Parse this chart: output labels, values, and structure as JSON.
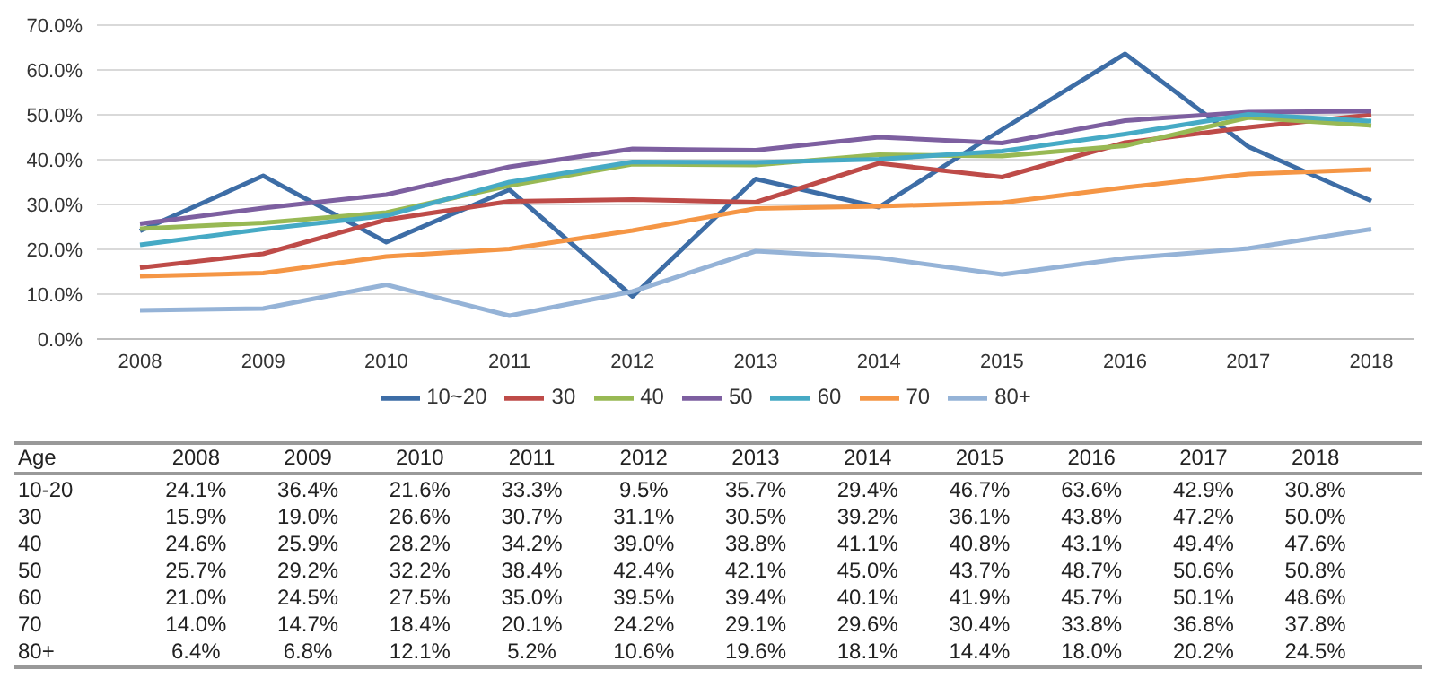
{
  "chart_data": {
    "type": "line",
    "categories": [
      "2008",
      "2009",
      "2010",
      "2011",
      "2012",
      "2013",
      "2014",
      "2015",
      "2016",
      "2017",
      "2018"
    ],
    "series": [
      {
        "name": "10~20",
        "color": "#3d6da6",
        "values": [
          24.1,
          36.4,
          21.6,
          33.3,
          9.5,
          35.7,
          29.4,
          46.7,
          63.6,
          42.9,
          30.8
        ],
        "value_labels": [
          "24.1%",
          "36.4%",
          "21.6%",
          "33.3%",
          "9.5%",
          "35.7%",
          "29.4%",
          "46.7%",
          "63.6%",
          "42.9%",
          "30.8%"
        ]
      },
      {
        "name": "30",
        "color": "#be4b48",
        "values": [
          15.9,
          19.0,
          26.6,
          30.7,
          31.1,
          30.5,
          39.2,
          36.1,
          43.8,
          47.2,
          50.0
        ],
        "value_labels": [
          "15.9%",
          "19.0%",
          "26.6%",
          "30.7%",
          "31.1%",
          "30.5%",
          "39.2%",
          "36.1%",
          "43.8%",
          "47.2%",
          "50.0%"
        ]
      },
      {
        "name": "40",
        "color": "#98b954",
        "values": [
          24.6,
          25.9,
          28.2,
          34.2,
          39.0,
          38.8,
          41.1,
          40.8,
          43.1,
          49.4,
          47.6
        ],
        "value_labels": [
          "24.6%",
          "25.9%",
          "28.2%",
          "34.2%",
          "39.0%",
          "38.8%",
          "41.1%",
          "40.8%",
          "43.1%",
          "49.4%",
          "47.6%"
        ]
      },
      {
        "name": "50",
        "color": "#7d5fa0",
        "values": [
          25.7,
          29.2,
          32.2,
          38.4,
          42.4,
          42.1,
          45.0,
          43.7,
          48.7,
          50.6,
          50.8
        ],
        "value_labels": [
          "25.7%",
          "29.2%",
          "32.2%",
          "38.4%",
          "42.4%",
          "42.1%",
          "45.0%",
          "43.7%",
          "48.7%",
          "50.6%",
          "50.8%"
        ]
      },
      {
        "name": "60",
        "color": "#46aac5",
        "values": [
          21.0,
          24.5,
          27.5,
          35.0,
          39.5,
          39.4,
          40.1,
          41.9,
          45.7,
          50.1,
          48.6
        ],
        "value_labels": [
          "21.0%",
          "24.5%",
          "27.5%",
          "35.0%",
          "39.5%",
          "39.4%",
          "40.1%",
          "41.9%",
          "45.7%",
          "50.1%",
          "48.6%"
        ]
      },
      {
        "name": "70",
        "color": "#f59645",
        "values": [
          14.0,
          14.7,
          18.4,
          20.1,
          24.2,
          29.1,
          29.6,
          30.4,
          33.8,
          36.8,
          37.8
        ],
        "value_labels": [
          "14.0%",
          "14.7%",
          "18.4%",
          "20.1%",
          "24.2%",
          "29.1%",
          "29.6%",
          "30.4%",
          "33.8%",
          "36.8%",
          "37.8%"
        ]
      },
      {
        "name": "80+",
        "color": "#95b3d7",
        "values": [
          6.4,
          6.8,
          12.1,
          5.2,
          10.6,
          19.6,
          18.1,
          14.4,
          18.0,
          20.2,
          24.5
        ],
        "value_labels": [
          "6.4%",
          "6.8%",
          "12.1%",
          "5.2%",
          "10.6%",
          "19.6%",
          "18.1%",
          "14.4%",
          "18.0%",
          "20.2%",
          "24.5%"
        ]
      }
    ],
    "annotations": [
      "Age",
      "10-20",
      "30",
      "40",
      "50",
      "60",
      "70",
      "80+"
    ],
    "ylim": [
      0,
      70
    ],
    "yticks": [
      {
        "value": 0,
        "label": "0.0%"
      },
      {
        "value": 10,
        "label": "10.0%"
      },
      {
        "value": 20,
        "label": "20.0%"
      },
      {
        "value": 30,
        "label": "30.0%"
      },
      {
        "value": 40,
        "label": "40.0%"
      },
      {
        "value": 50,
        "label": "50.0%"
      },
      {
        "value": 60,
        "label": "60.0%"
      },
      {
        "value": 70,
        "label": "70.0%"
      }
    ],
    "grid": "y",
    "legend": "bottom",
    "marker": "none",
    "line_style": "solid"
  }
}
